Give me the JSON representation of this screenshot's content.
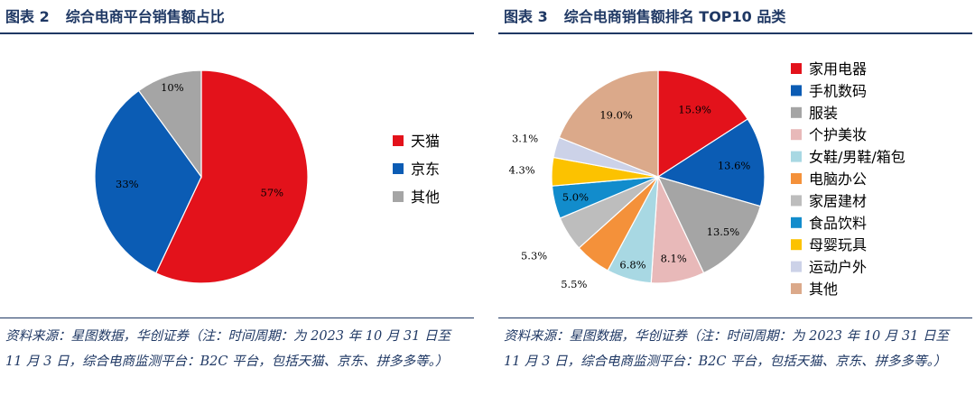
{
  "charts": [
    {
      "figure_label": "图表 2",
      "title": "综合电商平台销售额占比",
      "source_note": "资料来源：星图数据，华创证券（注：时间周期：为 2023 年 10 月 31 日至 11 月 3 日，综合电商监测平台：B2C 平台，包括天猫、京东、拼多多等。）"
    },
    {
      "figure_label": "图表 3",
      "title": "综合电商销售额排名 TOP10 品类",
      "source_note": "资料来源：星图数据，华创证券（注：时间周期：为 2023 年 10 月 31 日至 11 月 3 日，综合电商监测平台：B2C 平台，包括天猫、京东、拼多多等。）"
    }
  ],
  "chart_data": [
    {
      "type": "pie",
      "title": "综合电商平台销售额占比",
      "legend_position": "right",
      "start_angle_deg": 90,
      "direction": "clockwise",
      "slices": [
        {
          "name": "天猫",
          "value": 57,
          "label": "57%",
          "color": "#e3121b",
          "label_color": "#000000"
        },
        {
          "name": "京东",
          "value": 33,
          "label": "33%",
          "color": "#0b5cb4",
          "label_color": "#000000"
        },
        {
          "name": "其他",
          "value": 10,
          "label": "10%",
          "color": "#a5a5a5",
          "label_color": "#000000"
        }
      ]
    },
    {
      "type": "pie",
      "title": "综合电商销售额排名 TOP10 品类",
      "legend_position": "right",
      "start_angle_deg": 90,
      "direction": "clockwise",
      "slices": [
        {
          "name": "家用电器",
          "value": 15.9,
          "label": "15.9%",
          "color": "#e3121b",
          "label_color": "#000000"
        },
        {
          "name": "手机数码",
          "value": 13.6,
          "label": "13.6%",
          "color": "#0b5cb4",
          "label_color": "#000000"
        },
        {
          "name": "服装",
          "value": 13.5,
          "label": "13.5%",
          "color": "#a5a5a5",
          "label_color": "#000000"
        },
        {
          "name": "个护美妆",
          "value": 8.1,
          "label": "8.1%",
          "color": "#e8b9b9",
          "label_color": "#000000"
        },
        {
          "name": "女鞋/男鞋/箱包",
          "value": 6.8,
          "label": "6.8%",
          "color": "#a8d8e3",
          "label_color": "#000000"
        },
        {
          "name": "电脑办公",
          "value": 5.5,
          "label": "5.5%",
          "color": "#f4913a",
          "label_color": "#000000"
        },
        {
          "name": "家居建材",
          "value": 5.3,
          "label": "5.3%",
          "color": "#bdbdbd",
          "label_color": "#000000"
        },
        {
          "name": "食品饮料",
          "value": 5.0,
          "label": "5.0%",
          "color": "#128ccc",
          "label_color": "#000000"
        },
        {
          "name": "母婴玩具",
          "value": 4.3,
          "label": "4.3%",
          "color": "#fcc200",
          "label_color": "#000000"
        },
        {
          "name": "运动户外",
          "value": 3.1,
          "label": "3.1%",
          "color": "#ccd2e8",
          "label_color": "#000000"
        },
        {
          "name": "其他",
          "value": 19.0,
          "label": "19.0%",
          "color": "#dba98a",
          "label_color": "#000000"
        }
      ]
    }
  ]
}
